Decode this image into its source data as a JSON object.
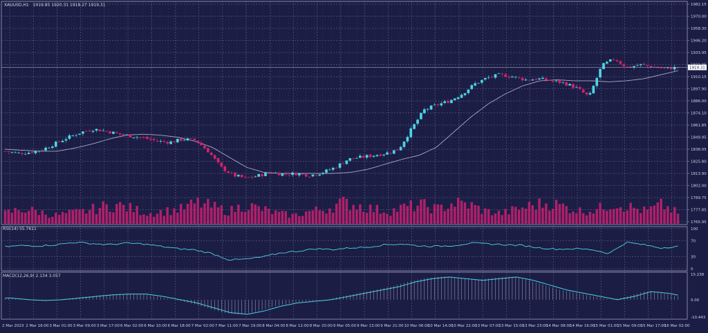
{
  "colors": {
    "background": "#1b1d45",
    "grid": "#6d7096",
    "bull": "#4fd3e3",
    "bear": "#d4226a",
    "ma": "#a9abc4",
    "volume": "#b0206a",
    "rsi_line": "#4fd3e3",
    "macd_line": "#4fd3e3",
    "macd_hist": "#c8cad8",
    "text": "#d0d2e6"
  },
  "header": {
    "symbol": "XAUUSD,H1",
    "ohlc": "1919.85 1920.31 1918.27 1919.31"
  },
  "price_axis": {
    "labels": [
      "1982.15",
      "1970.00",
      "1958.30",
      "1946.20",
      "1933.95",
      "1922.05",
      "1910.15",
      "1897.90",
      "1886.00",
      "1874.10",
      "1861.85",
      "1849.95",
      "1838.05",
      "1825.80",
      "1813.90",
      "1802.00",
      "1789.75",
      "1777.85",
      "1765.95"
    ],
    "current_price": "1919.31"
  },
  "rsi": {
    "label": "RSI(14) 55.7611",
    "levels": [
      "100",
      "70",
      "30",
      "0"
    ]
  },
  "macd": {
    "label": "MACD(12,26,9) 2.134 3.057",
    "levels": [
      "15.238",
      "0.00",
      "-10.443"
    ]
  },
  "time_axis": {
    "labels": [
      "2 Mar 2023",
      "2 Mar 16:00",
      "3 Mar 01:00",
      "3 Mar 09:00",
      "3 Mar 17:00",
      "6 Mar 02:00",
      "6 Mar 10:00",
      "6 Mar 18:00",
      "7 Mar 02:00",
      "7 Mar 11:00",
      "7 Mar 19:00",
      "8 Mar 04:00",
      "8 Mar 12:00",
      "8 Mar 20:00",
      "9 Mar 05:00",
      "9 Mar 13:00",
      "9 Mar 21:00",
      "10 Mar 06:00",
      "10 Mar 14:00",
      "10 Mar 22:00",
      "13 Mar 07:00",
      "13 Mar 15:00",
      "13 Mar 23:00",
      "14 Mar 08:00",
      "14 Mar 16:00",
      "15 Mar 01:00",
      "15 Mar 09:00",
      "15 Mar 17:00",
      "16 Mar 02:00"
    ]
  },
  "chart_data": {
    "type": "candlestick",
    "price_range": [
      1765.95,
      1982.15
    ],
    "price_key_points": [
      1836,
      1834,
      1835,
      1838,
      1844,
      1850,
      1855,
      1858,
      1856,
      1853,
      1851,
      1849,
      1846,
      1845,
      1848,
      1847,
      1836,
      1820,
      1812,
      1809,
      1812,
      1815,
      1813,
      1814,
      1812,
      1815,
      1820,
      1828,
      1830,
      1832,
      1834,
      1838,
      1858,
      1877,
      1882,
      1886,
      1893,
      1903,
      1909,
      1912,
      1910,
      1907,
      1908,
      1906,
      1904,
      1899,
      1890,
      1921,
      1928,
      1919,
      1922,
      1920,
      1918,
      1919.31
    ],
    "ma_key_points": [
      1838,
      1837,
      1836,
      1836,
      1839,
      1843,
      1848,
      1852,
      1853,
      1852,
      1850,
      1846,
      1840,
      1830,
      1820,
      1815,
      1814,
      1814,
      1814,
      1814,
      1815,
      1818,
      1823,
      1828,
      1832,
      1840,
      1855,
      1870,
      1883,
      1893,
      1901,
      1906,
      1907,
      1906,
      1906,
      1905,
      1906,
      1908,
      1912,
      1916
    ],
    "rsi_key_points": [
      55,
      58,
      57,
      60,
      66,
      63,
      60,
      64,
      62,
      56,
      50,
      47,
      38,
      22,
      24,
      30,
      40,
      44,
      50,
      48,
      52,
      54,
      60,
      62,
      57,
      56,
      58,
      64,
      62,
      60,
      58,
      52,
      49,
      50,
      48,
      38,
      66,
      60,
      52,
      56
    ],
    "rsi_range": [
      0,
      100
    ],
    "macd_key_points": [
      1,
      0,
      -0.5,
      0,
      1,
      2,
      3,
      3.5,
      3.5,
      2,
      0,
      -2,
      -5,
      -8,
      -9,
      -7,
      -4,
      -2,
      -1,
      0,
      2,
      4,
      6,
      8,
      11,
      13,
      14,
      13,
      12,
      13,
      14,
      12,
      9,
      6,
      4,
      2,
      0,
      2,
      5,
      4,
      2.1
    ],
    "macd_range": [
      -10.443,
      15.238
    ],
    "volume_key_points": [
      0.5,
      0.7,
      0.6,
      0.4,
      0.5,
      0.6,
      0.8,
      0.9,
      0.7,
      0.5,
      0.6,
      0.7,
      1.0,
      0.8,
      0.6,
      0.9,
      0.7,
      0.5,
      0.4,
      0.6,
      0.7,
      1.0,
      0.9,
      0.7,
      0.6,
      0.8,
      0.9,
      0.7,
      1.0,
      0.9,
      0.6,
      0.5,
      0.7,
      0.9,
      1.0,
      0.8,
      0.6,
      0.7,
      1.0,
      0.8,
      0.6,
      0.9,
      0.5
    ]
  }
}
